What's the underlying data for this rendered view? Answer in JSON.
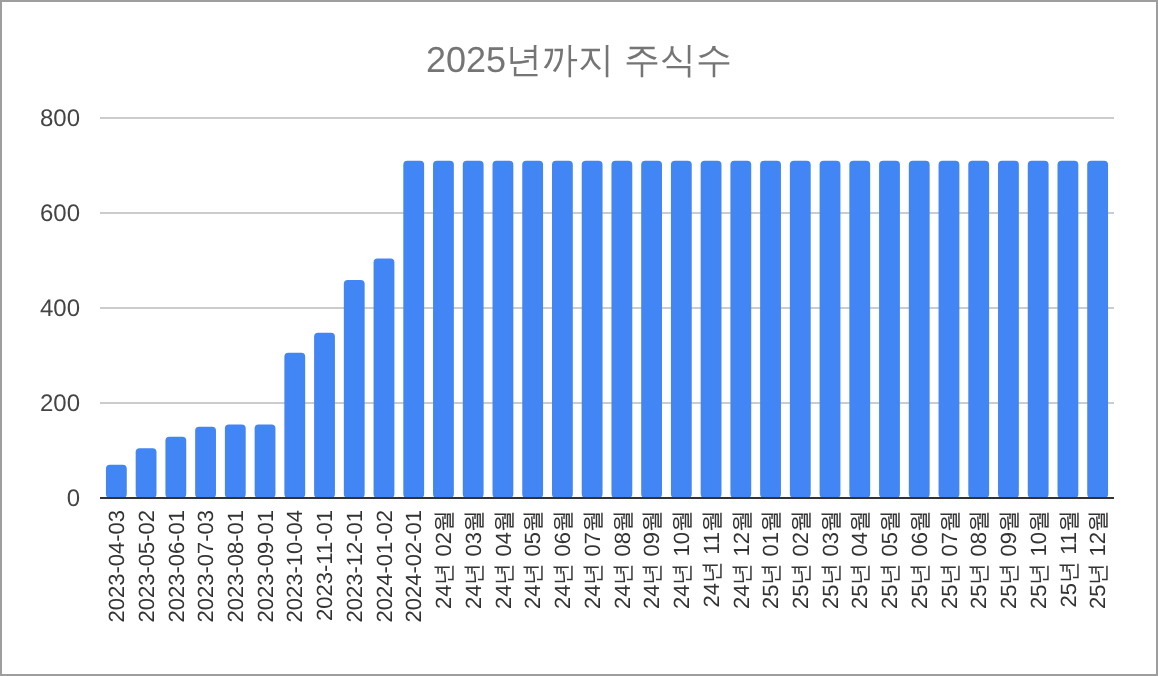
{
  "chart_data": {
    "type": "bar",
    "title": "2025년까지 주식수",
    "categories": [
      "2023-04-03",
      "2023-05-02",
      "2023-06-01",
      "2023-07-03",
      "2023-08-01",
      "2023-09-01",
      "2023-10-04",
      "2023-11-01",
      "2023-12-01",
      "2024-01-02",
      "2024-02-01",
      "24년 02월",
      "24년 03월",
      "24년 04월",
      "24년 05월",
      "24년 06월",
      "24년 07월",
      "24년 08월",
      "24년 09월",
      "24년 10월",
      "24년 11월",
      "24년 12월",
      "25년 01월",
      "25년 02월",
      "25년 03월",
      "25년 04월",
      "25년 05월",
      "25년 06월",
      "25년 07월",
      "25년 08월",
      "25년 09월",
      "25년 10월",
      "25년 11월",
      "25년 12월"
    ],
    "values": [
      70,
      105,
      129,
      150,
      155,
      155,
      306,
      348,
      459,
      504,
      710,
      710,
      710,
      710,
      710,
      710,
      710,
      710,
      710,
      710,
      710,
      710,
      710,
      710,
      710,
      710,
      710,
      710,
      710,
      710,
      710,
      710,
      710,
      710
    ],
    "color": "#4285f4",
    "ylim": [
      0,
      800
    ],
    "yticks": [
      0,
      200,
      400,
      600,
      800
    ],
    "grid": "y"
  }
}
